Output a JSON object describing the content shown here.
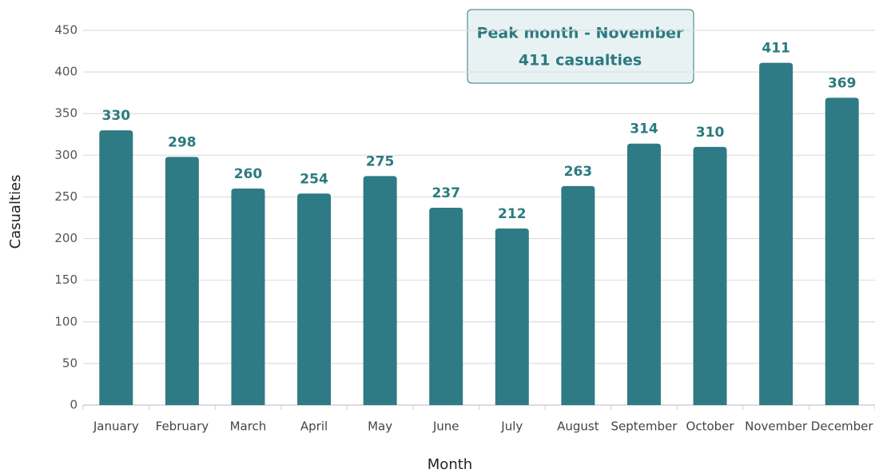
{
  "chart_data": {
    "type": "bar",
    "categories": [
      "January",
      "February",
      "March",
      "April",
      "May",
      "June",
      "July",
      "August",
      "September",
      "October",
      "November",
      "December"
    ],
    "values": [
      330,
      298,
      260,
      254,
      275,
      237,
      212,
      263,
      314,
      310,
      411,
      369
    ],
    "color": "#2e7b85",
    "xlabel": "Month",
    "ylabel": "Casualties",
    "ylim": [
      0,
      450
    ],
    "yticks": [
      0,
      50,
      100,
      150,
      200,
      250,
      300,
      350,
      400,
      450
    ],
    "grid": true,
    "annotation": [
      "Peak month - November",
      "411 casualties"
    ]
  }
}
